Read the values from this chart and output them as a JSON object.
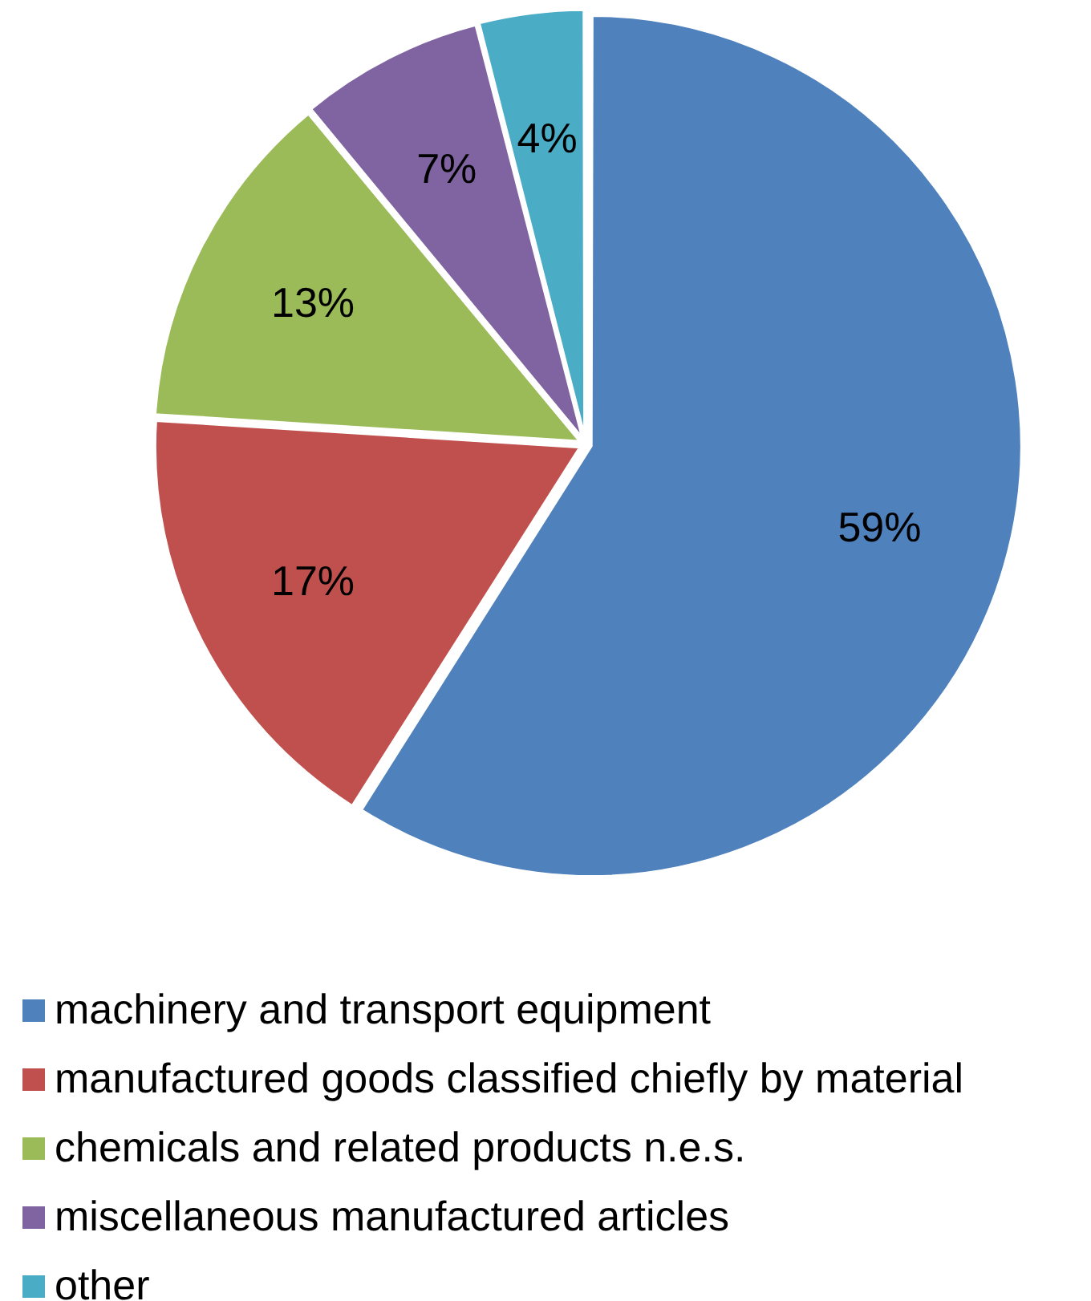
{
  "chart_data": {
    "type": "pie",
    "categories": [
      "machinery and transport equipment",
      "manufactured goods classified chiefly by material",
      "chemicals and related products n.e.s.",
      "miscellaneous manufactured articles",
      "other"
    ],
    "values": [
      59,
      17,
      13,
      7,
      4
    ],
    "value_labels": [
      "59%",
      "17%",
      "13%",
      "7%",
      "4%"
    ],
    "colors": [
      "#4f81bd",
      "#c0504d",
      "#9bbb59",
      "#8064a2",
      "#4bacc6"
    ],
    "legend": "bottom"
  }
}
